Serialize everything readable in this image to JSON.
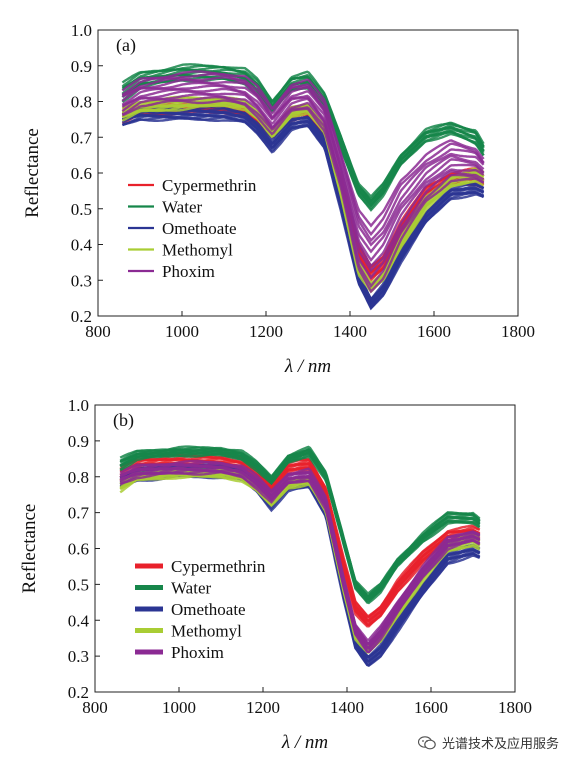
{
  "chart_data": [
    {
      "type": "line",
      "panel_label": "(a)",
      "xlabel": "λ / nm",
      "ylabel": "Reflectance",
      "xlim": [
        800,
        1800
      ],
      "ylim": [
        0.2,
        1.0
      ],
      "xticks": [
        "800",
        "1000",
        "1200",
        "1400",
        "1600",
        "1800"
      ],
      "yticks": [
        "0.2",
        "0.3",
        "0.4",
        "0.5",
        "0.6",
        "0.7",
        "0.8",
        "0.9",
        "1.0"
      ],
      "legend_position": "left",
      "series": [
        {
          "name": "Cypermethrin",
          "color": "#e8212b",
          "band": {
            "x": [
              858,
              900,
              1000,
              1100,
              1150,
              1180,
              1215,
              1260,
              1300,
              1340,
              1380,
              1420,
              1450,
              1480,
              1520,
              1580,
              1640,
              1700,
              1718
            ],
            "low": [
              0.74,
              0.76,
              0.77,
              0.77,
              0.76,
              0.73,
              0.7,
              0.75,
              0.76,
              0.7,
              0.55,
              0.36,
              0.3,
              0.33,
              0.42,
              0.52,
              0.57,
              0.57,
              0.56
            ],
            "high": [
              0.78,
              0.79,
              0.8,
              0.79,
              0.78,
              0.76,
              0.72,
              0.78,
              0.79,
              0.73,
              0.58,
              0.4,
              0.34,
              0.37,
              0.46,
              0.56,
              0.6,
              0.61,
              0.59
            ]
          }
        },
        {
          "name": "Water",
          "color": "#16864a",
          "band": {
            "x": [
              858,
              900,
              1000,
              1100,
              1150,
              1180,
              1215,
              1260,
              1300,
              1340,
              1380,
              1420,
              1450,
              1480,
              1520,
              1580,
              1640,
              1700,
              1718
            ],
            "low": [
              0.8,
              0.84,
              0.86,
              0.86,
              0.85,
              0.82,
              0.77,
              0.83,
              0.84,
              0.78,
              0.66,
              0.54,
              0.5,
              0.54,
              0.62,
              0.69,
              0.71,
              0.68,
              0.65
            ],
            "high": [
              0.85,
              0.88,
              0.9,
              0.9,
              0.89,
              0.86,
              0.8,
              0.87,
              0.88,
              0.82,
              0.7,
              0.57,
              0.53,
              0.57,
              0.65,
              0.72,
              0.74,
              0.72,
              0.68
            ]
          }
        },
        {
          "name": "Omethoate",
          "color": "#2b3593",
          "band": {
            "x": [
              858,
              900,
              1000,
              1100,
              1150,
              1180,
              1215,
              1260,
              1300,
              1340,
              1380,
              1420,
              1450,
              1480,
              1520,
              1580,
              1640,
              1700,
              1718
            ],
            "low": [
              0.73,
              0.75,
              0.75,
              0.75,
              0.74,
              0.71,
              0.66,
              0.72,
              0.73,
              0.67,
              0.49,
              0.29,
              0.22,
              0.26,
              0.35,
              0.46,
              0.53,
              0.54,
              0.53
            ],
            "high": [
              0.77,
              0.78,
              0.78,
              0.78,
              0.77,
              0.74,
              0.69,
              0.75,
              0.76,
              0.7,
              0.52,
              0.32,
              0.25,
              0.29,
              0.38,
              0.49,
              0.56,
              0.57,
              0.56
            ]
          }
        },
        {
          "name": "Methomyl",
          "color": "#a9cd34",
          "band": {
            "x": [
              858,
              900,
              1000,
              1100,
              1150,
              1180,
              1215,
              1260,
              1300,
              1340,
              1380,
              1420,
              1450,
              1480,
              1520,
              1580,
              1640,
              1700,
              1718
            ],
            "low": [
              0.75,
              0.77,
              0.78,
              0.79,
              0.78,
              0.75,
              0.7,
              0.76,
              0.77,
              0.71,
              0.53,
              0.32,
              0.27,
              0.3,
              0.39,
              0.5,
              0.56,
              0.58,
              0.57
            ],
            "high": [
              0.78,
              0.8,
              0.81,
              0.81,
              0.8,
              0.77,
              0.72,
              0.78,
              0.79,
              0.73,
              0.55,
              0.35,
              0.29,
              0.32,
              0.42,
              0.53,
              0.59,
              0.61,
              0.6
            ]
          }
        },
        {
          "name": "Phoxim",
          "color": "#8b2a93",
          "band": {
            "x": [
              858,
              900,
              1000,
              1100,
              1150,
              1180,
              1215,
              1260,
              1300,
              1340,
              1380,
              1420,
              1450,
              1480,
              1520,
              1580,
              1640,
              1700,
              1718
            ],
            "low": [
              0.76,
              0.79,
              0.8,
              0.8,
              0.79,
              0.76,
              0.71,
              0.77,
              0.78,
              0.72,
              0.55,
              0.33,
              0.27,
              0.31,
              0.41,
              0.52,
              0.58,
              0.58,
              0.57
            ],
            "high": [
              0.83,
              0.86,
              0.88,
              0.88,
              0.87,
              0.84,
              0.78,
              0.85,
              0.86,
              0.8,
              0.65,
              0.5,
              0.45,
              0.49,
              0.58,
              0.65,
              0.69,
              0.67,
              0.64
            ]
          }
        }
      ]
    },
    {
      "type": "line",
      "panel_label": "(b)",
      "xlabel": "λ / nm",
      "ylabel": "Reflectance",
      "xlim": [
        800,
        1800
      ],
      "ylim": [
        0.2,
        1.0
      ],
      "xticks": [
        "800",
        "1000",
        "1200",
        "1400",
        "1600",
        "1800"
      ],
      "yticks": [
        "0.2",
        "0.3",
        "0.4",
        "0.5",
        "0.6",
        "0.7",
        "0.8",
        "0.9",
        "1.0"
      ],
      "legend_position": "left",
      "series": [
        {
          "name": "Cypermethrin",
          "color": "#e8212b",
          "band": {
            "x": [
              860,
              900,
              1000,
              1100,
              1150,
              1185,
              1220,
              1260,
              1310,
              1350,
              1390,
              1420,
              1450,
              1480,
              1520,
              1580,
              1640,
              1700,
              1718
            ],
            "low": [
              0.79,
              0.82,
              0.83,
              0.83,
              0.82,
              0.79,
              0.76,
              0.81,
              0.82,
              0.74,
              0.55,
              0.42,
              0.38,
              0.41,
              0.48,
              0.56,
              0.62,
              0.63,
              0.62
            ],
            "high": [
              0.83,
              0.85,
              0.86,
              0.86,
              0.85,
              0.82,
              0.78,
              0.84,
              0.85,
              0.77,
              0.58,
              0.45,
              0.41,
              0.44,
              0.51,
              0.59,
              0.65,
              0.66,
              0.65
            ]
          }
        },
        {
          "name": "Water",
          "color": "#16864a",
          "band": {
            "x": [
              860,
              900,
              1000,
              1100,
              1150,
              1185,
              1220,
              1260,
              1310,
              1350,
              1390,
              1420,
              1450,
              1480,
              1520,
              1580,
              1640,
              1700,
              1718
            ],
            "low": [
              0.82,
              0.85,
              0.86,
              0.86,
              0.85,
              0.82,
              0.78,
              0.84,
              0.86,
              0.79,
              0.62,
              0.49,
              0.45,
              0.48,
              0.55,
              0.62,
              0.67,
              0.67,
              0.66
            ],
            "high": [
              0.85,
              0.87,
              0.88,
              0.88,
              0.87,
              0.84,
              0.8,
              0.86,
              0.88,
              0.81,
              0.64,
              0.51,
              0.47,
              0.5,
              0.57,
              0.64,
              0.7,
              0.7,
              0.68
            ]
          }
        },
        {
          "name": "Omethoate",
          "color": "#2b3593",
          "band": {
            "x": [
              860,
              900,
              1000,
              1100,
              1150,
              1185,
              1220,
              1260,
              1310,
              1350,
              1390,
              1420,
              1450,
              1480,
              1520,
              1580,
              1640,
              1700,
              1718
            ],
            "low": [
              0.77,
              0.79,
              0.8,
              0.8,
              0.79,
              0.76,
              0.71,
              0.76,
              0.77,
              0.69,
              0.47,
              0.32,
              0.27,
              0.3,
              0.37,
              0.47,
              0.56,
              0.58,
              0.57
            ],
            "high": [
              0.8,
              0.82,
              0.83,
              0.83,
              0.82,
              0.79,
              0.74,
              0.79,
              0.8,
              0.72,
              0.5,
              0.35,
              0.3,
              0.33,
              0.4,
              0.5,
              0.59,
              0.61,
              0.6
            ]
          }
        },
        {
          "name": "Methomyl",
          "color": "#a9cd34",
          "band": {
            "x": [
              860,
              900,
              1000,
              1100,
              1150,
              1185,
              1220,
              1260,
              1310,
              1350,
              1390,
              1420,
              1450,
              1480,
              1520,
              1580,
              1640,
              1700,
              1718
            ],
            "low": [
              0.76,
              0.79,
              0.8,
              0.8,
              0.79,
              0.76,
              0.72,
              0.77,
              0.78,
              0.7,
              0.49,
              0.35,
              0.31,
              0.34,
              0.41,
              0.51,
              0.59,
              0.61,
              0.6
            ],
            "high": [
              0.79,
              0.81,
              0.82,
              0.82,
              0.81,
              0.78,
              0.74,
              0.79,
              0.8,
              0.72,
              0.52,
              0.38,
              0.33,
              0.36,
              0.44,
              0.54,
              0.62,
              0.64,
              0.63
            ]
          }
        },
        {
          "name": "Phoxim",
          "color": "#8b2a93",
          "band": {
            "x": [
              860,
              900,
              1000,
              1100,
              1150,
              1185,
              1220,
              1260,
              1310,
              1350,
              1390,
              1420,
              1450,
              1480,
              1520,
              1580,
              1640,
              1700,
              1718
            ],
            "low": [
              0.78,
              0.8,
              0.81,
              0.81,
              0.8,
              0.77,
              0.73,
              0.78,
              0.79,
              0.71,
              0.5,
              0.36,
              0.31,
              0.35,
              0.42,
              0.52,
              0.6,
              0.62,
              0.61
            ],
            "high": [
              0.81,
              0.83,
              0.84,
              0.84,
              0.83,
              0.8,
              0.76,
              0.81,
              0.82,
              0.74,
              0.53,
              0.39,
              0.34,
              0.38,
              0.45,
              0.55,
              0.63,
              0.65,
              0.64
            ]
          }
        }
      ]
    }
  ],
  "watermark": {
    "text": "光谱技术及应用服务",
    "icon": "wechat-icon"
  }
}
